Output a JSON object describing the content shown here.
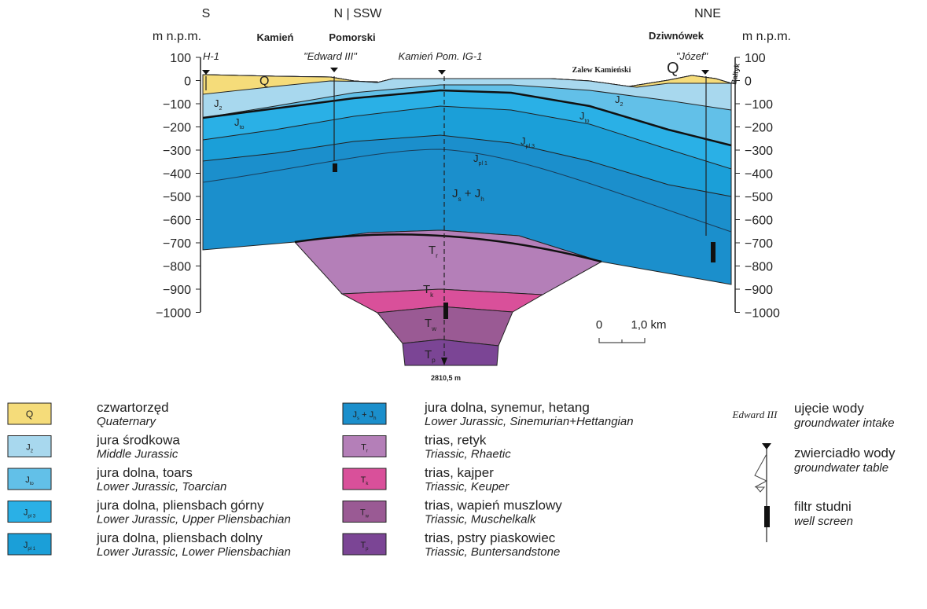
{
  "header": {
    "left_dir": "S",
    "center_dir": "N | SSW",
    "right_dir": "NNE",
    "left_unit": "m n.p.m.",
    "right_unit": "m n.p.m."
  },
  "places": [
    "Kamień",
    "Pomorski",
    "Dziwnówek",
    "H-1",
    "\"Edward III\"",
    "Kamień Pom. IG-1",
    "\"Józef\"",
    "Zalew Kamieński",
    "Bałtyk"
  ],
  "layer_labels": [
    {
      "parts": [
        "Q"
      ]
    },
    {
      "parts": [
        "J",
        "2"
      ]
    },
    {
      "parts": [
        "J",
        "to"
      ]
    },
    {
      "parts": [
        "J",
        "pl 3"
      ]
    },
    {
      "parts": [
        "J",
        "to"
      ]
    },
    {
      "parts": [
        "J",
        "2"
      ]
    },
    {
      "parts": [
        "J",
        "pl 1"
      ]
    },
    {
      "parts": [
        "J",
        "s",
        " + J",
        "h"
      ]
    },
    {
      "parts": [
        "T",
        "r"
      ]
    },
    {
      "parts": [
        "T",
        "k"
      ]
    },
    {
      "parts": [
        "T",
        "w"
      ]
    },
    {
      "parts": [
        "T",
        "p"
      ]
    },
    {
      "parts": [
        "Q"
      ]
    }
  ],
  "axis": {
    "ticks": [
      "100",
      "0",
      "−100",
      "−200",
      "−300",
      "−400",
      "−500",
      "−600",
      "−700",
      "−800",
      "−900",
      "−1000"
    ]
  },
  "depth_label": "2810,5 m",
  "scale": {
    "start": "0",
    "end": "1,0 km"
  },
  "legend": [
    {
      "symbol": [
        "Q"
      ],
      "name": "czwartorzęd",
      "name_en": "Quaternary"
    },
    {
      "symbol": [
        "J",
        "2"
      ],
      "name": "jura środkowa",
      "name_en": "Middle Jurassic"
    },
    {
      "symbol": [
        "J",
        "to"
      ],
      "name": "jura dolna, toars",
      "name_en": "Lower Jurassic, Toarcian"
    },
    {
      "symbol": [
        "J",
        "pl 3"
      ],
      "name": "jura dolna, pliensbach górny",
      "name_en": "Lower Jurassic, Upper Pliensbachian"
    },
    {
      "symbol": [
        "J",
        "pl 1"
      ],
      "name": "jura dolna, pliensbach dolny",
      "name_en": "Lower Jurassic, Lower Pliensbachian"
    },
    {
      "symbol": [
        "J",
        "s",
        " + J",
        "h"
      ],
      "name": "jura dolna, synemur, hetang",
      "name_en": "Lower Jurassic, Sinemurian+Hettangian"
    },
    {
      "symbol": [
        "T",
        "r"
      ],
      "name": "trias, retyk",
      "name_en": "Triassic, Rhaetic"
    },
    {
      "symbol": [
        "T",
        "k"
      ],
      "name": "trias, kajper",
      "name_en": "Triassic, Keuper"
    },
    {
      "symbol": [
        "T",
        "w"
      ],
      "name": "trias, wapień muszlowy",
      "name_en": "Triassic, Muschelkalk"
    },
    {
      "symbol": [
        "T",
        "p"
      ],
      "name": "trias, pstry piaskowiec",
      "name_en": "Triassic, Buntersandstone"
    }
  ],
  "key_sample": "Edward III",
  "key": [
    {
      "name": "ujęcie wody",
      "name_en": "groundwater intake"
    },
    {
      "name": "zwierciadło wody",
      "name_en": "groundwater table"
    },
    {
      "name": "filtr studni",
      "name_en": "well screen"
    }
  ]
}
